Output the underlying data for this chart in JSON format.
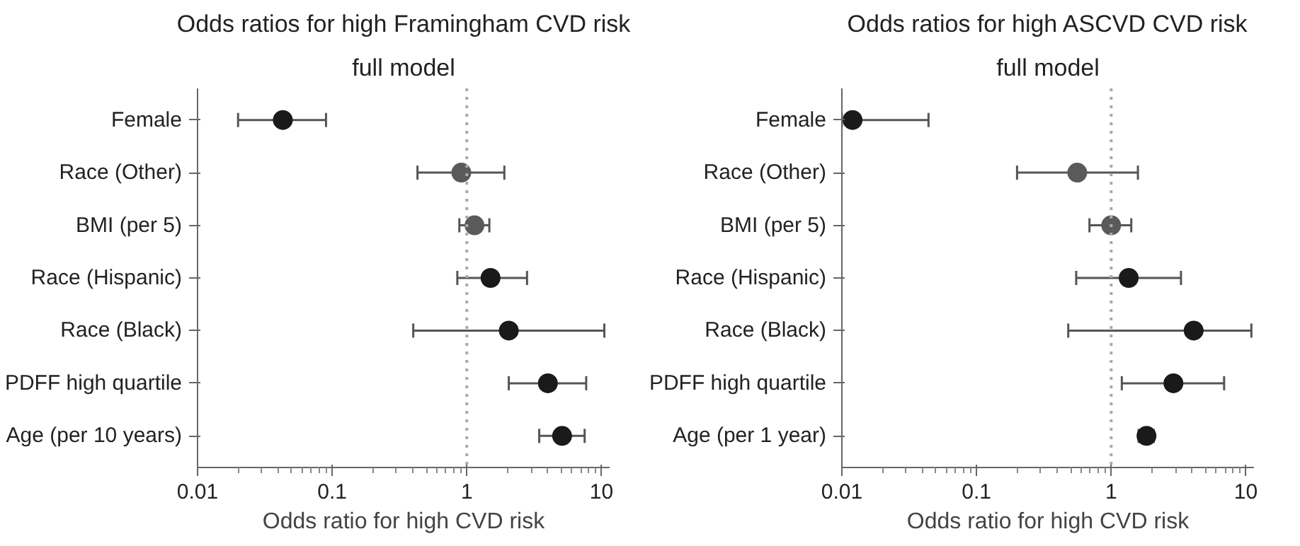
{
  "chart_data": [
    {
      "type": "scatter",
      "title": "Odds ratios for high Framingham CVD risk",
      "subtitle": "full model",
      "xlabel": "Odds ratio for high CVD risk",
      "orientation": "horizontal",
      "log": "x",
      "marker": "circle",
      "categories": [
        "Female",
        "Race (Other)",
        "BMI (per 5)",
        "Race (Hispanic)",
        "Race (Black)",
        "PDFF high quartile",
        "Age (per 10 years)"
      ],
      "values": [
        0.043,
        0.91,
        1.14,
        1.5,
        2.05,
        4.0,
        5.1
      ],
      "errors": [
        [
          0.02,
          0.09
        ],
        [
          0.43,
          1.9
        ],
        [
          0.88,
          1.47
        ],
        [
          0.85,
          2.8
        ],
        [
          0.4,
          10.5
        ],
        [
          2.05,
          7.7
        ],
        [
          3.45,
          7.5
        ]
      ],
      "colors": [
        "#1a1a1a",
        "#5a5a5a",
        "#5a5a5a",
        "#1a1a1a",
        "#1a1a1a",
        "#1a1a1a",
        "#1a1a1a"
      ],
      "xlim": [
        0.01,
        11.5
      ],
      "xticks": [
        0.01,
        0.1,
        1,
        10
      ],
      "ref_lines": [
        {
          "axis": "x",
          "value": 1,
          "color": "#aaaaaa",
          "line_style": "dotted"
        }
      ]
    },
    {
      "type": "scatter",
      "title": "Odds ratios for high ASCVD CVD risk",
      "subtitle": "full model",
      "xlabel": "Odds ratio for high CVD risk",
      "orientation": "horizontal",
      "log": "x",
      "marker": "circle",
      "categories": [
        "Female",
        "Race (Other)",
        "BMI (per 5)",
        "Race (Hispanic)",
        "Race (Black)",
        "PDFF high quartile",
        "Age (per 1 year)"
      ],
      "values": [
        0.012,
        0.56,
        1.0,
        1.35,
        4.1,
        2.9,
        1.83
      ],
      "errors": [
        [
          0.01,
          0.044
        ],
        [
          0.2,
          1.58
        ],
        [
          0.69,
          1.41
        ],
        [
          0.55,
          3.3
        ],
        [
          0.48,
          11
        ],
        [
          1.2,
          6.9
        ],
        [
          1.6,
          2.07
        ]
      ],
      "colors": [
        "#1a1a1a",
        "#5a5a5a",
        "#5a5a5a",
        "#1a1a1a",
        "#1a1a1a",
        "#1a1a1a",
        "#1a1a1a"
      ],
      "xlim": [
        0.01,
        11.5
      ],
      "xticks": [
        0.01,
        0.1,
        1,
        10
      ],
      "ref_lines": [
        {
          "axis": "x",
          "value": 1,
          "color": "#aaaaaa",
          "line_style": "dotted"
        }
      ]
    }
  ]
}
